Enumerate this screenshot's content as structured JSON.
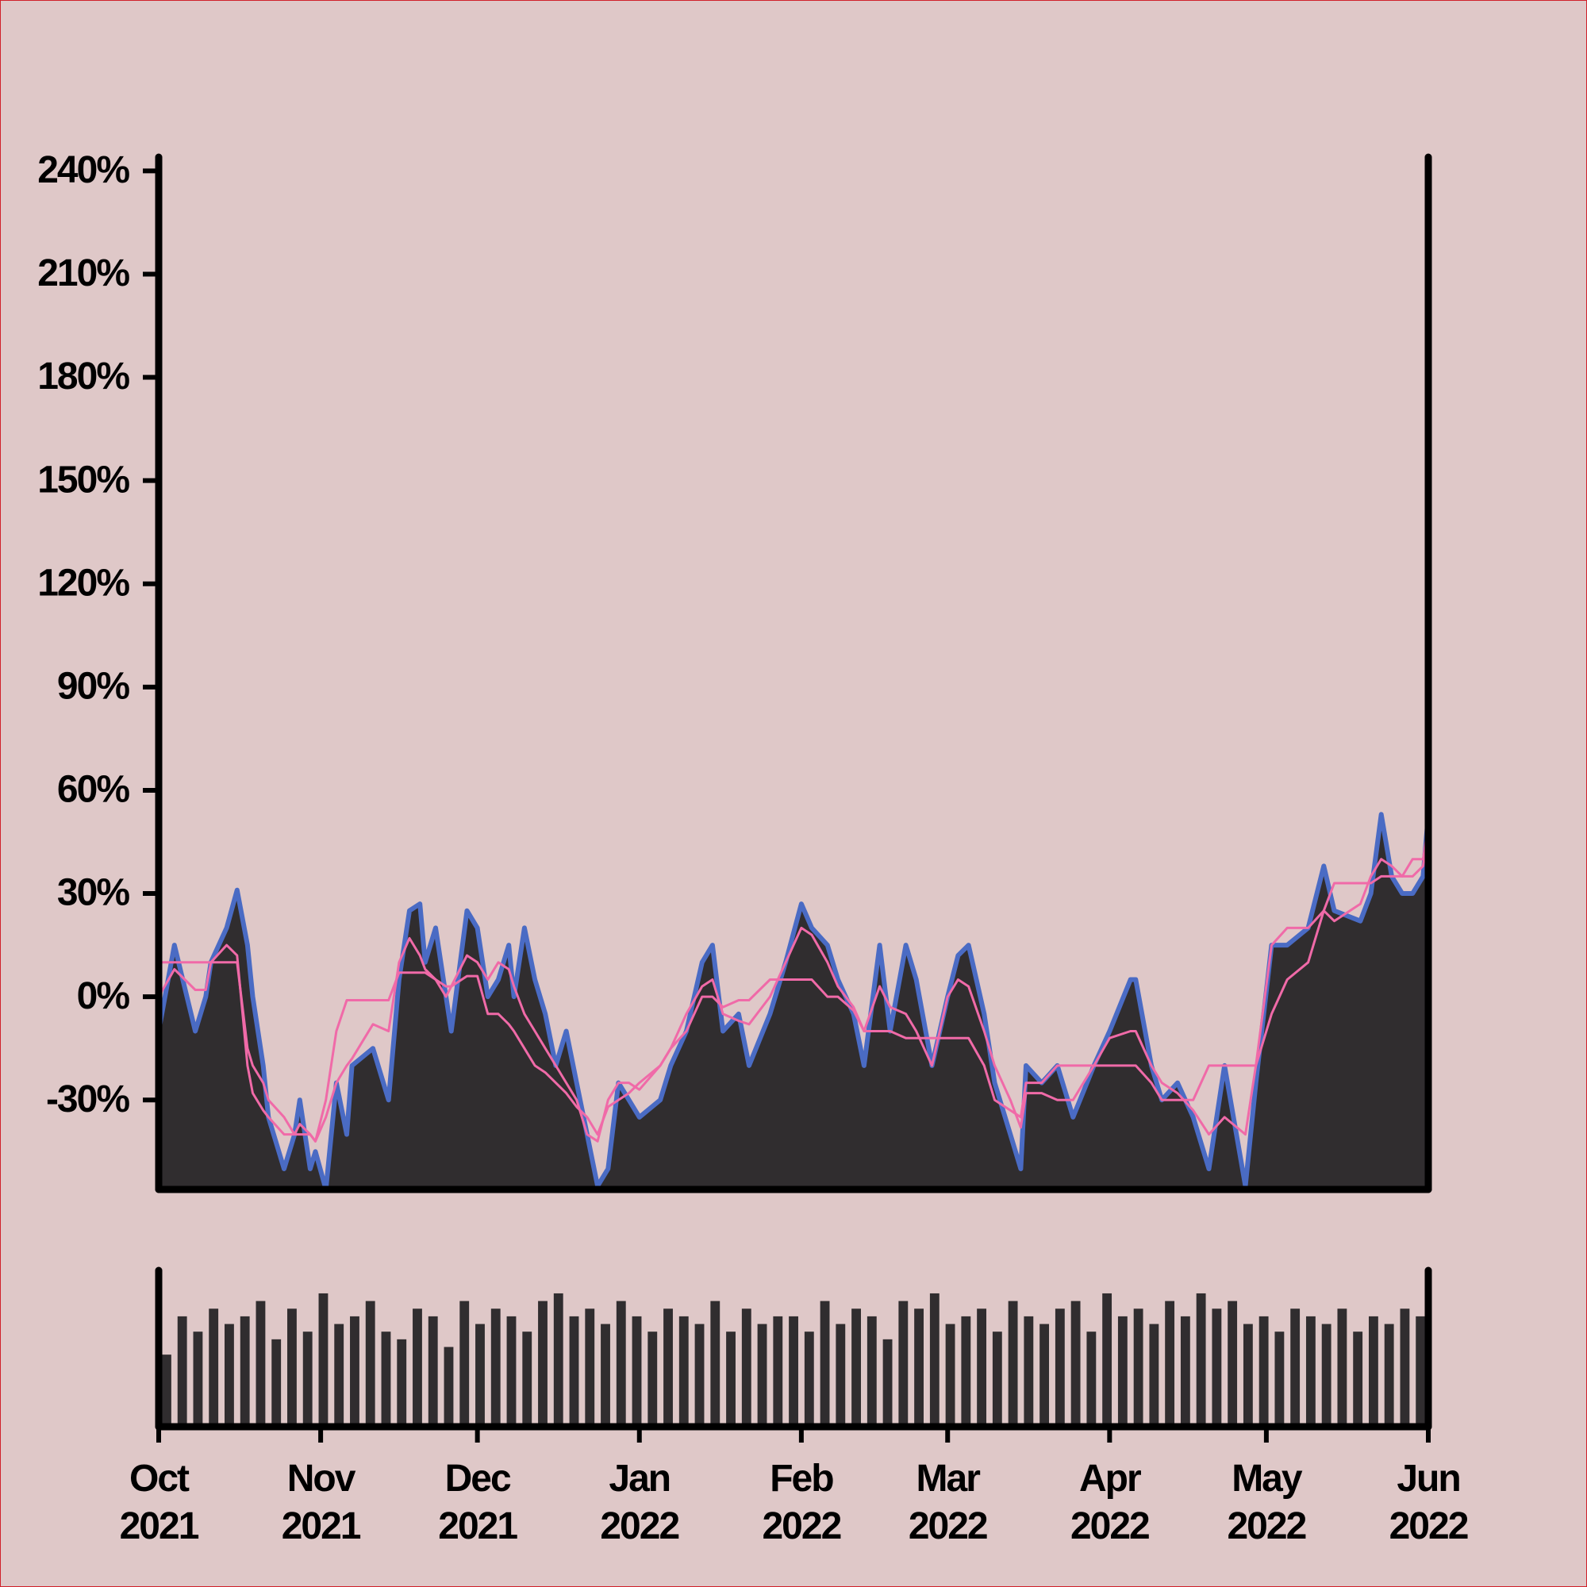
{
  "chart_data": [
    {
      "type": "line",
      "xlim": [
        0,
        243
      ],
      "ylim": [
        -56,
        244
      ],
      "yticks": [
        {
          "value": -30,
          "label": "-30%"
        },
        {
          "value": 0,
          "label": "0%"
        },
        {
          "value": 30,
          "label": "30%"
        },
        {
          "value": 60,
          "label": "60%"
        },
        {
          "value": 90,
          "label": "90%"
        },
        {
          "value": 120,
          "label": "120%"
        },
        {
          "value": 150,
          "label": "150%"
        },
        {
          "value": 180,
          "label": "180%"
        },
        {
          "value": 210,
          "label": "210%"
        },
        {
          "value": 240,
          "label": "240%"
        }
      ],
      "area_color": "#302d2f",
      "x": [
        0,
        3,
        7,
        9,
        10,
        13,
        15,
        17,
        18,
        20,
        21,
        24,
        26,
        27,
        29,
        30,
        32,
        34,
        36,
        37,
        41,
        44,
        46,
        48,
        50,
        51,
        53,
        55,
        56,
        59,
        61,
        63,
        65,
        67,
        68,
        70,
        72,
        74,
        76,
        78,
        80,
        82,
        84,
        86,
        88,
        90,
        92,
        96,
        98,
        101,
        104,
        106,
        108,
        111,
        113,
        117,
        120,
        123,
        125,
        128,
        130,
        133,
        135,
        138,
        140,
        143,
        145,
        148,
        151,
        153,
        155,
        158,
        160,
        163,
        165,
        166,
        169,
        172,
        175,
        179,
        182,
        186,
        187,
        190,
        192,
        195,
        198,
        201,
        204,
        208,
        210,
        213,
        216,
        220,
        223,
        225,
        230,
        232,
        234,
        236,
        238,
        240,
        242,
        243
      ],
      "series": [
        {
          "color": "#4a6bc4",
          "values": [
            -10,
            15,
            -10,
            0,
            10,
            20,
            31,
            15,
            0,
            -20,
            -35,
            -50,
            -40,
            -30,
            -50,
            -45,
            -56,
            -25,
            -40,
            -20,
            -15,
            -30,
            5,
            25,
            27,
            10,
            20,
            0,
            -10,
            25,
            20,
            0,
            5,
            15,
            0,
            20,
            5,
            -5,
            -20,
            -10,
            -25,
            -40,
            -55,
            -50,
            -25,
            -30,
            -35,
            -30,
            -20,
            -10,
            10,
            15,
            -10,
            -5,
            -20,
            -5,
            10,
            27,
            20,
            15,
            5,
            -5,
            -20,
            15,
            -10,
            15,
            5,
            -20,
            0,
            12,
            15,
            -5,
            -25,
            -40,
            -50,
            -20,
            -25,
            -20,
            -35,
            -20,
            -10,
            5,
            5,
            -20,
            -30,
            -25,
            -35,
            -50,
            -20,
            -55,
            -25,
            15,
            15,
            20,
            38,
            25,
            22,
            30,
            53,
            35,
            30,
            30,
            35,
            53
          ]
        },
        {
          "color": "#f06aa8",
          "values": [
            0,
            8,
            2,
            2,
            10,
            15,
            12,
            -20,
            -28,
            -33,
            -35,
            -40,
            -40,
            -37,
            -40,
            -42,
            -35,
            -25,
            -20,
            -18,
            -8,
            -10,
            10,
            17,
            12,
            8,
            5,
            0,
            3,
            12,
            10,
            5,
            10,
            8,
            3,
            -5,
            -10,
            -15,
            -20,
            -25,
            -30,
            -40,
            -42,
            -30,
            -25,
            -25,
            -27,
            -20,
            -15,
            -5,
            3,
            5,
            -5,
            -7,
            -8,
            0,
            10,
            20,
            18,
            10,
            3,
            -3,
            -10,
            3,
            -3,
            -5,
            -10,
            -20,
            0,
            5,
            3,
            -10,
            -20,
            -30,
            -38,
            -28,
            -28,
            -30,
            -30,
            -20,
            -12,
            -10,
            -10,
            -20,
            -25,
            -28,
            -33,
            -40,
            -35,
            -40,
            -20,
            -5,
            5,
            10,
            25,
            22,
            27,
            35,
            40,
            38,
            35,
            35,
            38,
            50
          ]
        },
        {
          "color": "#f06aa8",
          "values": [
            10,
            10,
            10,
            10,
            10,
            10,
            10,
            -15,
            -20,
            -25,
            -30,
            -35,
            -40,
            -40,
            -40,
            -42,
            -30,
            -10,
            -1,
            -1,
            -1,
            -1,
            7,
            7,
            7,
            7,
            5,
            3,
            3,
            6,
            6,
            -5,
            -5,
            -8,
            -10,
            -15,
            -20,
            -22,
            -25,
            -28,
            -32,
            -35,
            -40,
            -32,
            -30,
            -28,
            -25,
            -20,
            -15,
            -10,
            0,
            0,
            -3,
            -1,
            -1,
            5,
            5,
            5,
            5,
            0,
            0,
            -4,
            -10,
            -10,
            -10,
            -12,
            -12,
            -12,
            -12,
            -12,
            -12,
            -20,
            -30,
            -33,
            -35,
            -25,
            -25,
            -20,
            -20,
            -20,
            -20,
            -20,
            -20,
            -25,
            -30,
            -30,
            -30,
            -20,
            -20,
            -20,
            -20,
            15,
            20,
            20,
            25,
            33,
            33,
            33,
            35,
            35,
            35,
            40,
            40,
            50
          ]
        }
      ]
    },
    {
      "type": "bar",
      "color": "#302d2f",
      "xlim": [
        0,
        243
      ],
      "ylim": [
        0,
        100
      ],
      "xticks": [
        {
          "value": 0,
          "label": "Oct 2021"
        },
        {
          "value": 31,
          "label": "Nov 2021"
        },
        {
          "value": 61,
          "label": "Dec 2021"
        },
        {
          "value": 92,
          "label": "Jan 2022"
        },
        {
          "value": 123,
          "label": "Feb 2022"
        },
        {
          "value": 151,
          "label": "Mar 2022"
        },
        {
          "value": 182,
          "label": "Apr 2022"
        },
        {
          "value": 212,
          "label": "May 2022"
        },
        {
          "value": 243,
          "label": "Jun 2022"
        }
      ],
      "x": [
        0,
        3,
        6,
        9,
        12,
        15,
        18,
        21,
        24,
        27,
        30,
        33,
        36,
        39,
        42,
        45,
        48,
        51,
        54,
        57,
        60,
        63,
        66,
        69,
        72,
        75,
        78,
        81,
        84,
        87,
        90,
        93,
        96,
        99,
        102,
        105,
        108,
        111,
        114,
        117,
        120,
        123,
        126,
        129,
        132,
        135,
        138,
        141,
        144,
        147,
        150,
        153,
        156,
        159,
        162,
        165,
        168,
        171,
        174,
        177,
        180,
        183,
        186,
        189,
        192,
        195,
        198,
        201,
        204,
        207,
        210,
        213,
        216,
        219,
        222,
        225,
        228,
        231,
        234,
        237,
        240
      ],
      "values": [
        45,
        70,
        60,
        75,
        65,
        70,
        80,
        55,
        75,
        60,
        85,
        65,
        70,
        80,
        60,
        55,
        75,
        70,
        50,
        80,
        65,
        75,
        70,
        60,
        80,
        85,
        70,
        75,
        65,
        80,
        70,
        60,
        75,
        70,
        65,
        80,
        60,
        75,
        65,
        70,
        70,
        60,
        80,
        65,
        75,
        70,
        55,
        80,
        75,
        85,
        65,
        70,
        75,
        60,
        80,
        70,
        65,
        75,
        80,
        60,
        85,
        70,
        75,
        65,
        80,
        70,
        85,
        75,
        80,
        65,
        70,
        60,
        75,
        70,
        65,
        75,
        60,
        70,
        65,
        75,
        70
      ]
    }
  ]
}
